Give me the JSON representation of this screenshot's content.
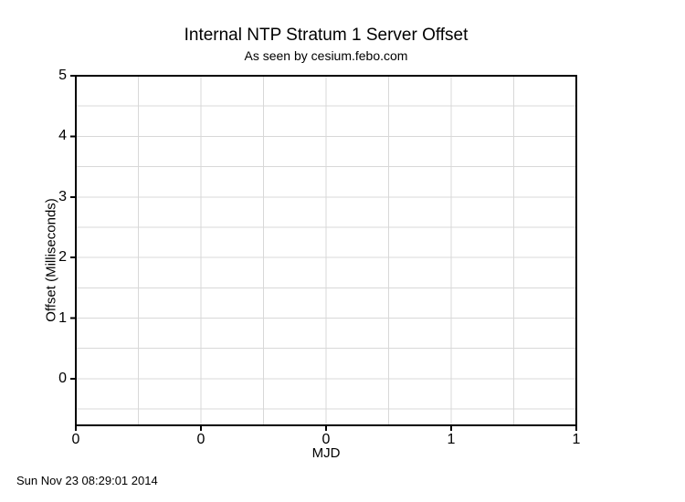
{
  "page": {
    "timestamp": "Sun Nov 23 08:29:01 2014"
  },
  "chart_data": {
    "type": "line",
    "title": "Internal NTP Stratum 1 Server Offset",
    "subtitle": "As seen by cesium.febo.com",
    "xlabel": "MJD",
    "ylabel": "Offset (Milliseconds)",
    "x_tick_labels": [
      "0",
      "0",
      "0",
      "1",
      "1"
    ],
    "y_tick_labels": [
      "5",
      "4",
      "3",
      "2",
      "1",
      "0"
    ],
    "y_tick_values": [
      5,
      4,
      3,
      2,
      1,
      0
    ],
    "ylim": [
      -0.77,
      5
    ],
    "y_grid_step": 0.5,
    "x_minor_gridlines_between_majors": 1,
    "grid": true,
    "legend_position": "none",
    "series": [],
    "colors": {
      "background": "#ffffff",
      "grid": "#d8d8d8",
      "axis": "#000000",
      "text": "#000000"
    }
  }
}
